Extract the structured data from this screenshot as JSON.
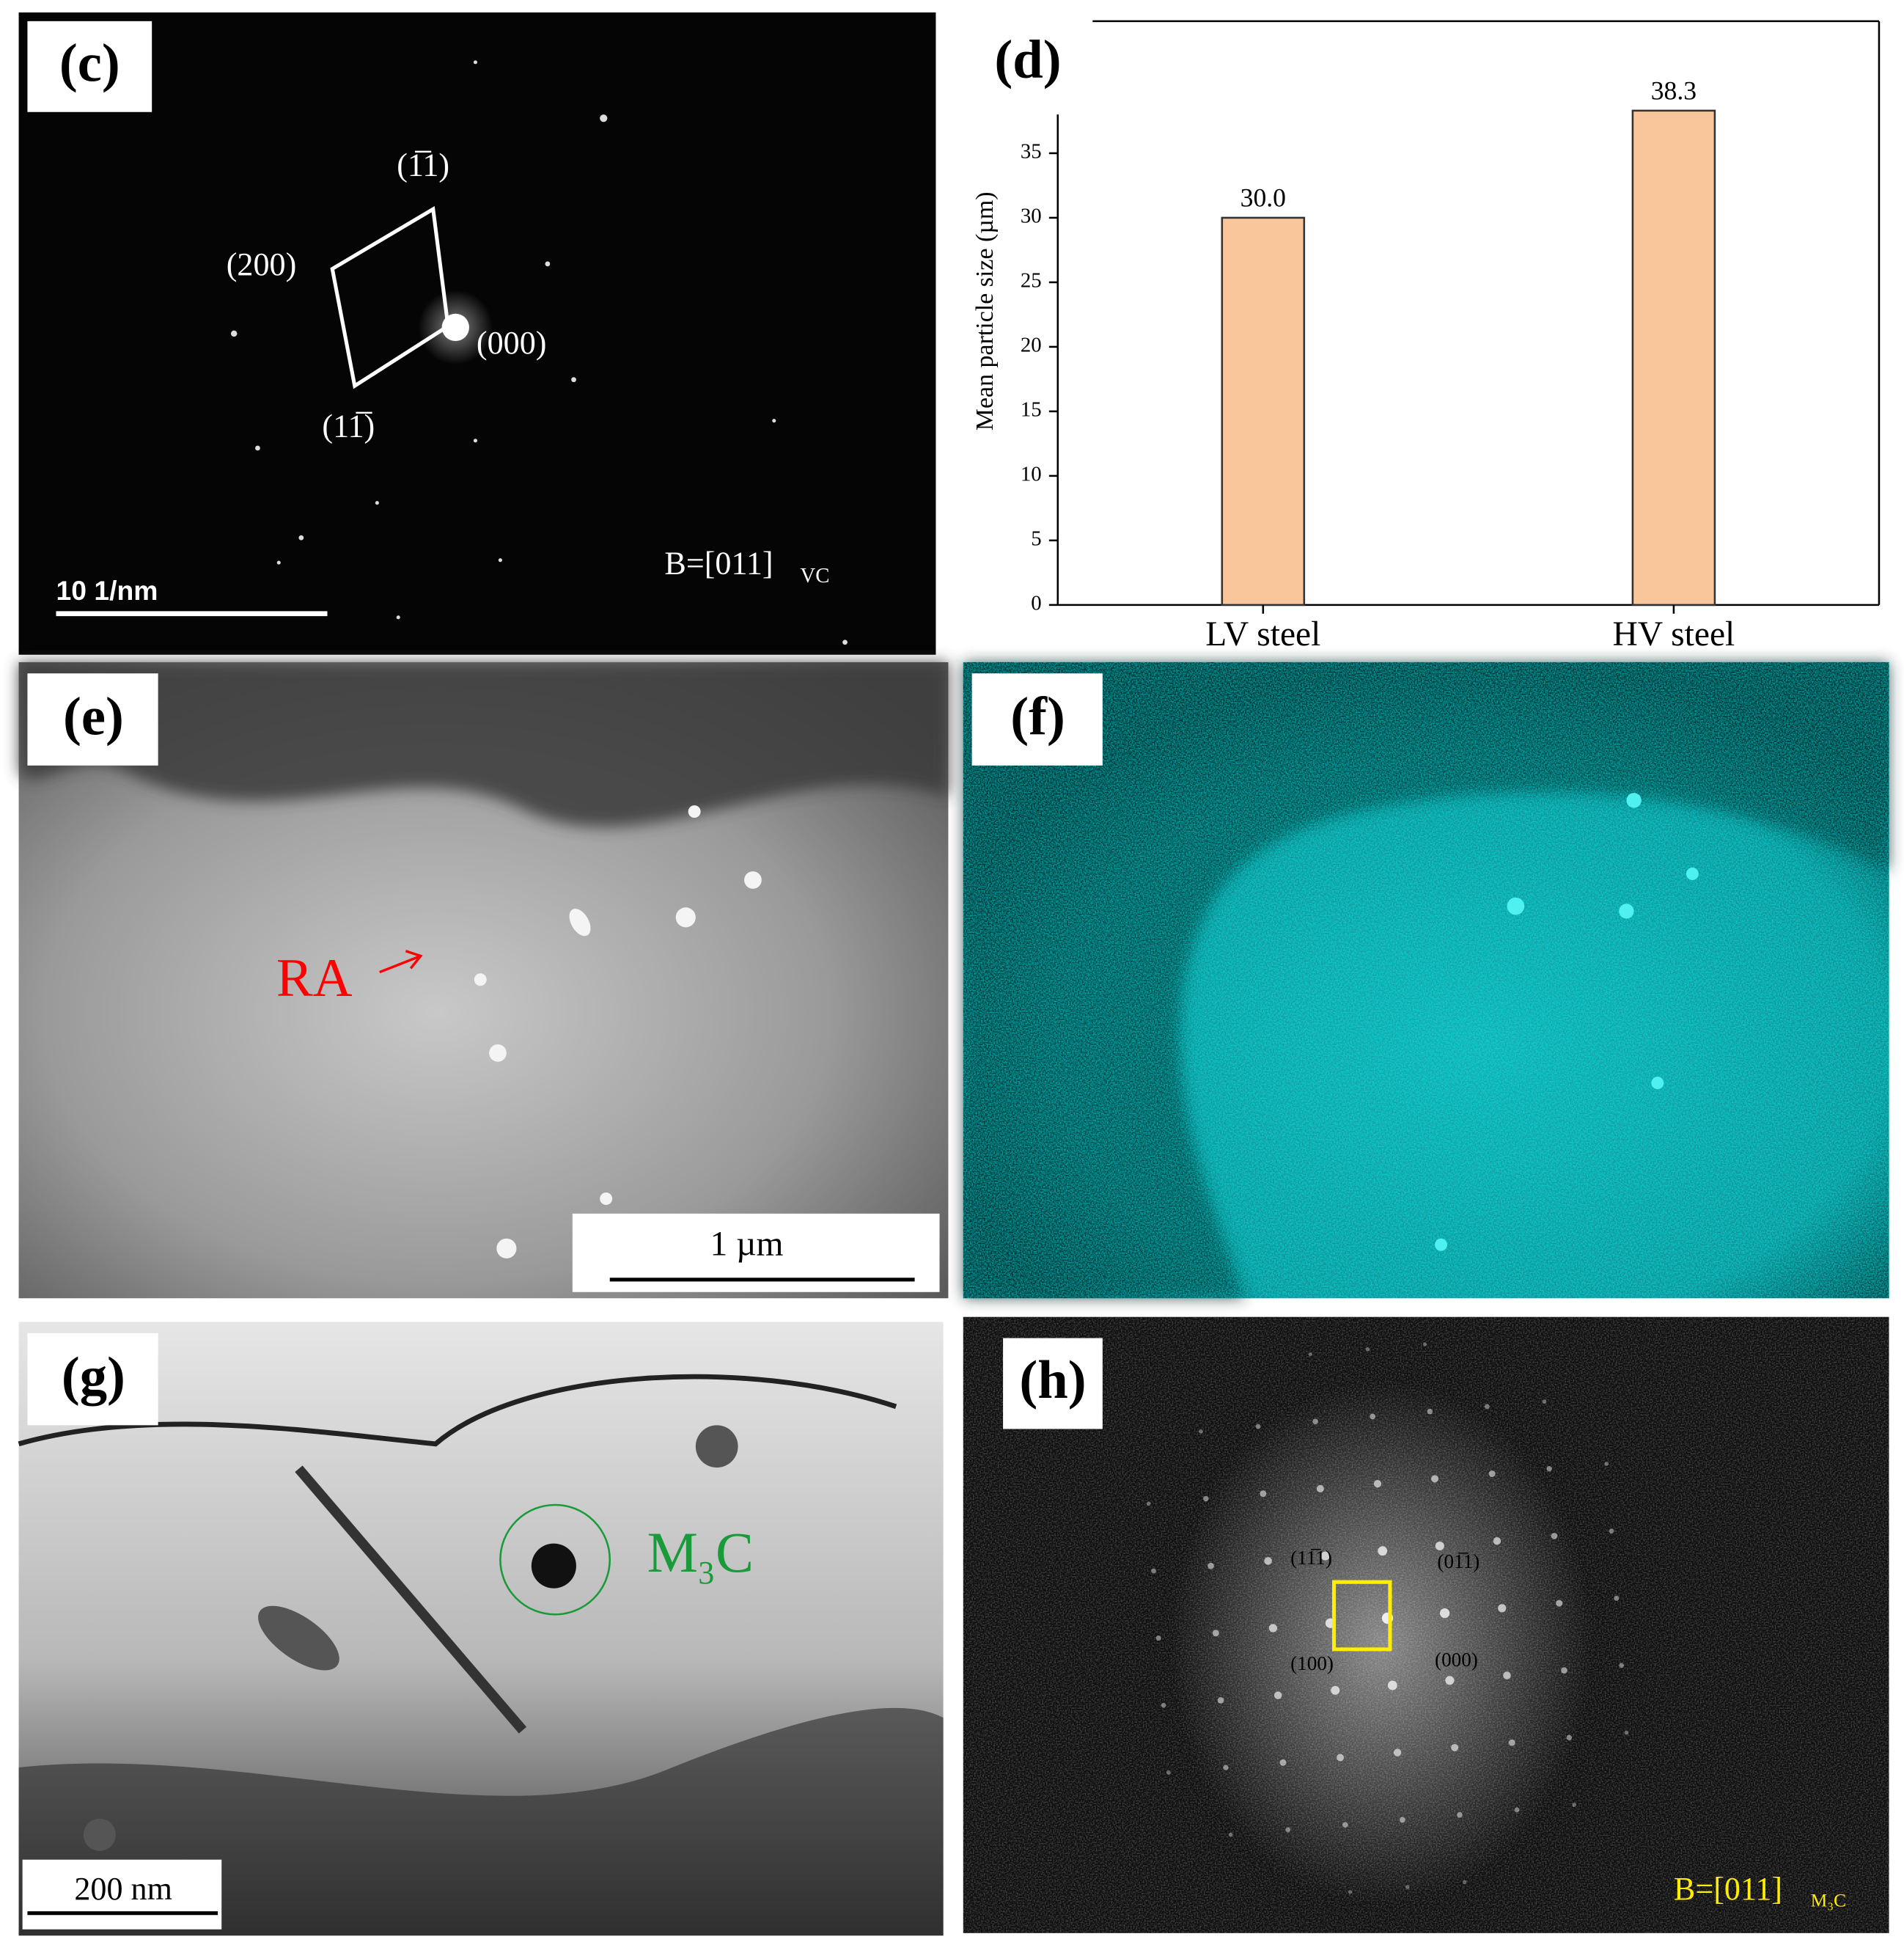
{
  "panels": {
    "c": {
      "label": "(c)",
      "spots": [
        "(1̅1)",
        "(200)",
        "(000)",
        "(11̅)"
      ],
      "scale_bar": "10 1/nm",
      "zone_axis": "B=[011]",
      "zone_axis_sub": "VC"
    },
    "d": {
      "label": "(d)"
    },
    "e": {
      "label": "(e)",
      "annotation": "RA",
      "scale_bar": "1 µm"
    },
    "f": {
      "label": "(f)"
    },
    "g": {
      "label": "(g)",
      "phase": "M",
      "phase_sub": "3",
      "phase_end": "C",
      "scale_bar": "200 nm"
    },
    "h": {
      "label": "(h)",
      "spots": [
        "(11̅1)",
        "(01̅1)",
        "(100)",
        "(000)"
      ],
      "zone_axis": "B=[011]",
      "zone_axis_sub": "M₃C"
    }
  },
  "chart_data": {
    "type": "bar",
    "y_label": "Mean particle size (µm)",
    "categories": [
      "LV steel",
      "HV steel"
    ],
    "values": [
      30.0,
      38.3
    ],
    "value_labels": [
      "30.0",
      "38.3"
    ],
    "color": "#f9c69c",
    "ylim": [
      0,
      38
    ],
    "yticks": [
      0,
      5,
      10,
      15,
      20,
      25,
      30,
      35
    ]
  }
}
